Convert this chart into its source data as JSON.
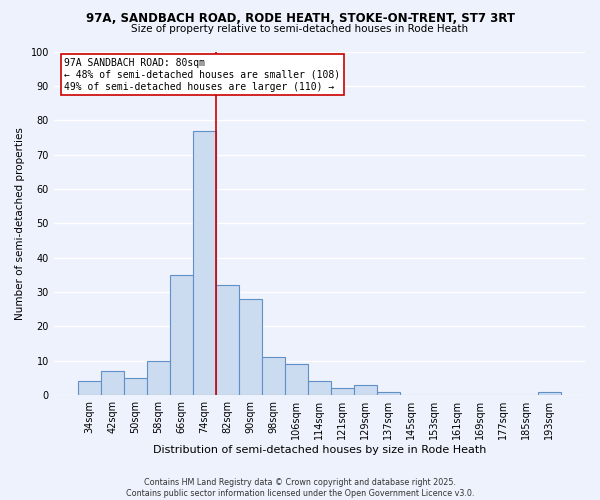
{
  "title1": "97A, SANDBACH ROAD, RODE HEATH, STOKE-ON-TRENT, ST7 3RT",
  "title2": "Size of property relative to semi-detached houses in Rode Heath",
  "xlabel": "Distribution of semi-detached houses by size in Rode Heath",
  "ylabel": "Number of semi-detached properties",
  "bar_labels": [
    "34sqm",
    "42sqm",
    "50sqm",
    "58sqm",
    "66sqm",
    "74sqm",
    "82sqm",
    "90sqm",
    "98sqm",
    "106sqm",
    "114sqm",
    "121sqm",
    "129sqm",
    "137sqm",
    "145sqm",
    "153sqm",
    "161sqm",
    "169sqm",
    "177sqm",
    "185sqm",
    "193sqm"
  ],
  "bar_values": [
    4,
    7,
    5,
    10,
    35,
    77,
    32,
    28,
    11,
    9,
    4,
    2,
    3,
    1,
    0,
    0,
    0,
    0,
    0,
    0,
    1
  ],
  "bar_color": "#ccdcf0",
  "bar_edge_color": "#6090c8",
  "bg_color": "#eef2fc",
  "grid_color": "#ffffff",
  "annotation_line1": "97A SANDBACH ROAD: 80sqm",
  "annotation_line2": "← 48% of semi-detached houses are smaller (108)",
  "annotation_line3": "49% of semi-detached houses are larger (110) →",
  "vline_color": "#cc0000",
  "vline_x": 5.5,
  "ylim": [
    0,
    100
  ],
  "yticks": [
    0,
    10,
    20,
    30,
    40,
    50,
    60,
    70,
    80,
    90,
    100
  ],
  "footer1": "Contains HM Land Registry data © Crown copyright and database right 2025.",
  "footer2": "Contains public sector information licensed under the Open Government Licence v3.0."
}
